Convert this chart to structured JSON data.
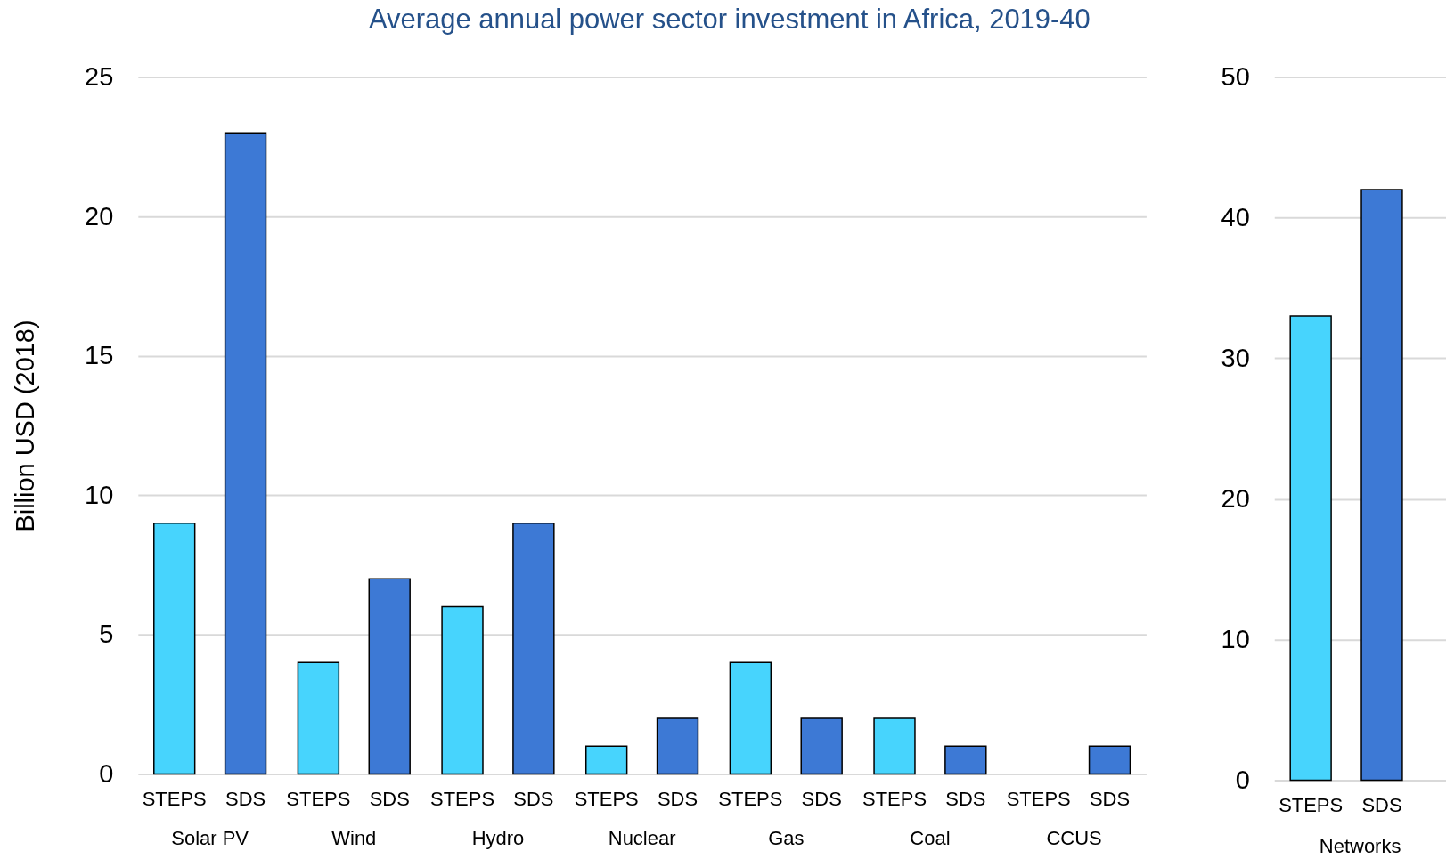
{
  "chart_data": [
    {
      "type": "bar",
      "title": "Average annual power sector investment in Africa, 2019-40",
      "ylabel": "Billion USD (2018)",
      "categories": [
        "Solar PV",
        "Wind",
        "Hydro",
        "Nuclear",
        "Gas",
        "Coal",
        "CCUS"
      ],
      "series": [
        {
          "name": "STEPS",
          "color": "#47d4fd",
          "values": [
            9,
            4,
            6,
            1,
            4,
            2,
            null
          ]
        },
        {
          "name": "SDS",
          "color": "#3d79d5",
          "values": [
            23,
            7,
            9,
            2,
            2,
            1,
            1
          ]
        }
      ],
      "ylim": [
        0,
        25
      ],
      "yticks": [
        0,
        5,
        10,
        15,
        20,
        25
      ],
      "grid": "y"
    },
    {
      "type": "bar",
      "categories": [
        "Networks"
      ],
      "series": [
        {
          "name": "STEPS",
          "color": "#47d4fd",
          "values": [
            33
          ]
        },
        {
          "name": "SDS",
          "color": "#3d79d5",
          "values": [
            42
          ]
        }
      ],
      "ylim": [
        0,
        50
      ],
      "yticks": [
        0,
        10,
        20,
        30,
        40,
        50
      ],
      "grid": "y"
    }
  ]
}
